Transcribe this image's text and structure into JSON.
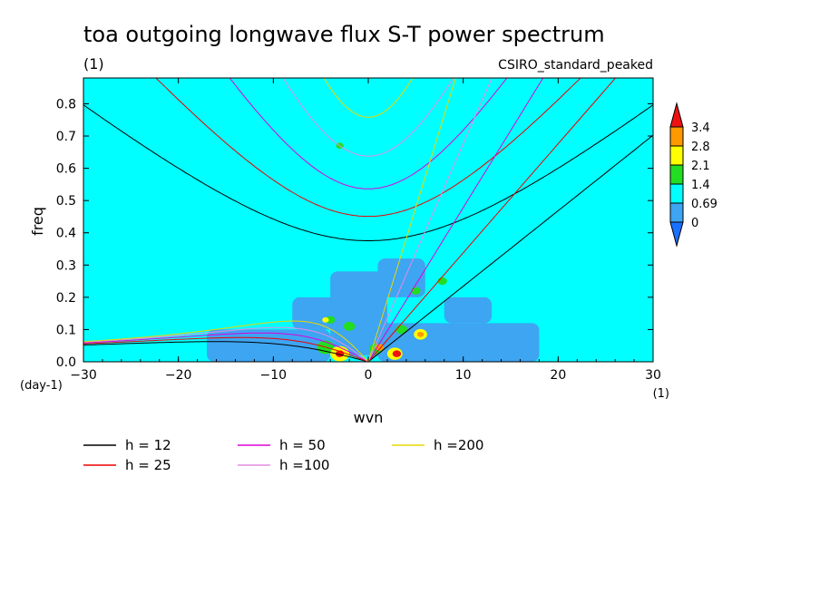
{
  "chart_data": {
    "type": "heatmap",
    "title": "toa outgoing longwave flux S-T power spectrum",
    "subtitle_left": "(1)",
    "subtitle_right": "CSIRO_standard_peaked",
    "xlabel": "wvn",
    "x_units": "(1)",
    "ylabel": "freq",
    "y_units": "(day-1)",
    "xlim": [
      -30,
      30
    ],
    "ylim": [
      0,
      0.88
    ],
    "x_ticks": [
      -30,
      -20,
      -10,
      0,
      10,
      20,
      30
    ],
    "y_ticks": [
      0.0,
      0.1,
      0.2,
      0.3,
      0.4,
      0.5,
      0.6,
      0.7,
      0.8
    ],
    "colorbar": {
      "levels": [
        "0",
        "0.69",
        "1.4",
        "2.1",
        "2.8",
        "3.4"
      ],
      "colors": [
        "#1a70ff",
        "#3da5f2",
        "#00ffff",
        "#22dd22",
        "#ffff00",
        "#ff9900",
        "#ee1111"
      ]
    },
    "background_level_color": "#00ffff",
    "low_level_color": "#3da5f2",
    "dispersion_curves": [
      {
        "label": "h = 12",
        "h": 12,
        "color": "#000000"
      },
      {
        "label": "h = 25",
        "h": 25,
        "color": "#ee0000"
      },
      {
        "label": "h = 50",
        "h": 50,
        "color": "#dd00dd"
      },
      {
        "label": "h =100",
        "h": 100,
        "color": "#e48ce4"
      },
      {
        "label": "h =200",
        "h": 200,
        "color": "#e8d800"
      }
    ],
    "low_power_regions": [
      {
        "x": [
          -17,
          -4
        ],
        "y": [
          0.0,
          0.1
        ]
      },
      {
        "x": [
          -8,
          -1
        ],
        "y": [
          0.1,
          0.2
        ]
      },
      {
        "x": [
          -4,
          2
        ],
        "y": [
          0.02,
          0.28
        ]
      },
      {
        "x": [
          1,
          6
        ],
        "y": [
          0.2,
          0.32
        ]
      },
      {
        "x": [
          1,
          18
        ],
        "y": [
          0.0,
          0.12
        ]
      },
      {
        "x": [
          8,
          13
        ],
        "y": [
          0.12,
          0.2
        ]
      }
    ],
    "peaks": [
      {
        "x": -4.5,
        "y": 0.045,
        "r": 0.9,
        "color": "#22dd22"
      },
      {
        "x": -3,
        "y": 0.025,
        "r": 1.0,
        "color": "#ffff00"
      },
      {
        "x": -3,
        "y": 0.025,
        "r": 0.45,
        "color": "#ee1111"
      },
      {
        "x": -2,
        "y": 0.11,
        "r": 0.6,
        "color": "#22dd22"
      },
      {
        "x": -4,
        "y": 0.13,
        "r": 0.5,
        "color": "#22dd22"
      },
      {
        "x": 0.8,
        "y": 0.04,
        "r": 0.7,
        "color": "#22dd22"
      },
      {
        "x": 1.2,
        "y": 0.045,
        "r": 0.45,
        "color": "#ff9900"
      },
      {
        "x": 2.8,
        "y": 0.025,
        "r": 0.8,
        "color": "#ffff00"
      },
      {
        "x": 3.0,
        "y": 0.025,
        "r": 0.45,
        "color": "#ee1111"
      },
      {
        "x": 3.5,
        "y": 0.1,
        "r": 0.6,
        "color": "#22dd22"
      },
      {
        "x": 5.5,
        "y": 0.085,
        "r": 0.7,
        "color": "#ffff00"
      },
      {
        "x": 5.5,
        "y": 0.085,
        "r": 0.35,
        "color": "#ff9900"
      },
      {
        "x": 5.0,
        "y": 0.22,
        "r": 0.5,
        "color": "#22dd22"
      },
      {
        "x": 7.8,
        "y": 0.25,
        "r": 0.5,
        "color": "#22dd22"
      },
      {
        "x": -3,
        "y": 0.67,
        "r": 0.4,
        "color": "#22dd22"
      },
      {
        "x": -4.5,
        "y": 0.13,
        "r": 0.35,
        "color": "#ffff00"
      }
    ]
  }
}
